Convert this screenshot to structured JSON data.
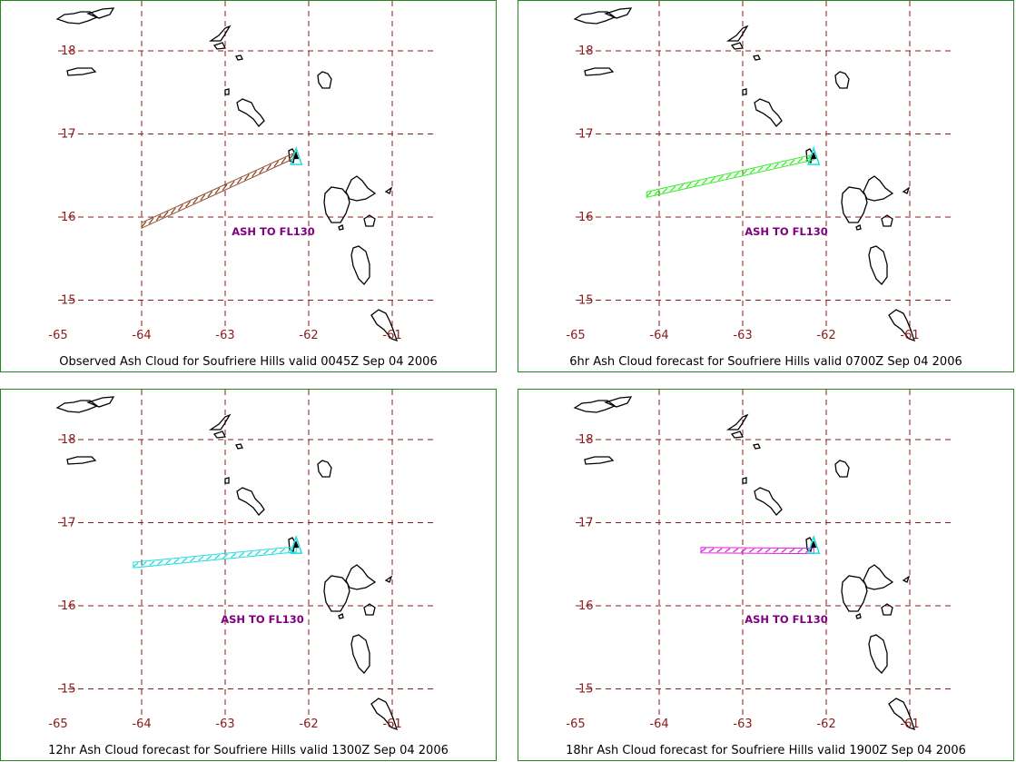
{
  "map": {
    "lat_labels": [
      "18",
      "17",
      "16",
      "15"
    ],
    "lon_labels": [
      "-65",
      "-64",
      "-63",
      "-62",
      "-61"
    ]
  },
  "panels": [
    {
      "caption": "Observed Ash Cloud for Soufriere  Hills valid 0045Z Sep 04 2006",
      "ash_label": "ASH TO FL130",
      "cloud_color": "#8b4a2b",
      "cloud_from": [
        -64.0,
        15.9
      ],
      "cloud_to": [
        -62.15,
        16.75
      ]
    },
    {
      "caption": "6hr Ash Cloud forecast for Soufriere  Hills valid 0700Z Sep 04 2006",
      "ash_label": "ASH TO FL130",
      "cloud_color": "#33ee22",
      "cloud_from": [
        -64.15,
        16.27
      ],
      "cloud_to": [
        -62.15,
        16.72
      ]
    },
    {
      "caption": "12hr Ash Cloud forecast for Soufriere  Hills valid 1300Z Sep 04 2006",
      "ash_label": "ASH TO FL130",
      "cloud_color": "#22dddd",
      "cloud_from": [
        -64.1,
        16.49
      ],
      "cloud_to": [
        -62.15,
        16.68
      ]
    },
    {
      "caption": "18hr Ash Cloud forecast for Soufriere  Hills valid 1900Z Sep 04 2006",
      "ash_label": "ASH TO FL130",
      "cloud_color": "#dd22dd",
      "cloud_from": [
        -63.5,
        16.67
      ],
      "cloud_to": [
        -62.15,
        16.66
      ]
    }
  ],
  "volcano_marker_color": "#22dddd"
}
